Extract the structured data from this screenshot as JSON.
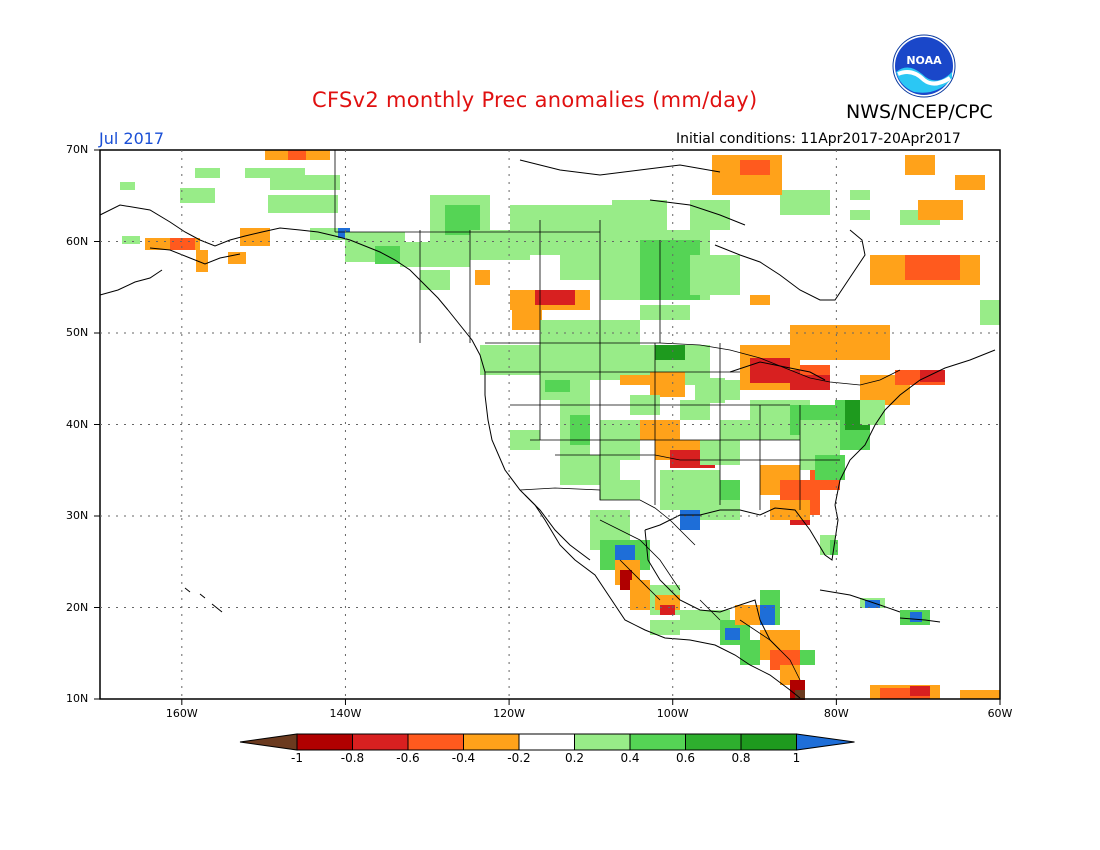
{
  "header": {
    "title": "CFSv2 monthly Prec anomalies (mm/day)",
    "org": "NWS/NCEP/CPC",
    "month": "Jul 2017",
    "initial_conditions": "Initial conditions: 11Apr2017-20Apr2017",
    "logo_text": "NOAA"
  },
  "map": {
    "lon_range": [
      -170,
      -60
    ],
    "lat_range": [
      10,
      70
    ],
    "lat_labels": [
      "70N",
      "60N",
      "50N",
      "40N",
      "30N",
      "20N",
      "10N"
    ],
    "lon_labels": [
      "160W",
      "140W",
      "120W",
      "100W",
      "80W",
      "60W"
    ]
  },
  "colorbar": {
    "labels": [
      "-1",
      "-0.8",
      "-0.6",
      "-0.4",
      "-0.2",
      "0.2",
      "0.4",
      "0.6",
      "0.8",
      "1"
    ],
    "colors": [
      "#6b3a1f",
      "#b00000",
      "#d82020",
      "#ff5a1e",
      "#ffa21a",
      "#ffffff",
      "#98ec88",
      "#55d455",
      "#2eaf2e",
      "#1e9a1e",
      "#1e6ed8"
    ]
  },
  "colors": {
    "light_green": "#98ec88",
    "green": "#55d455",
    "dark_green": "#1e9a1e",
    "orange": "#ffa21a",
    "red_orange": "#ff5a1e",
    "red": "#d82020",
    "dark_red": "#b00000",
    "brown": "#6b3a1f",
    "blue": "#1e6ed8"
  }
}
